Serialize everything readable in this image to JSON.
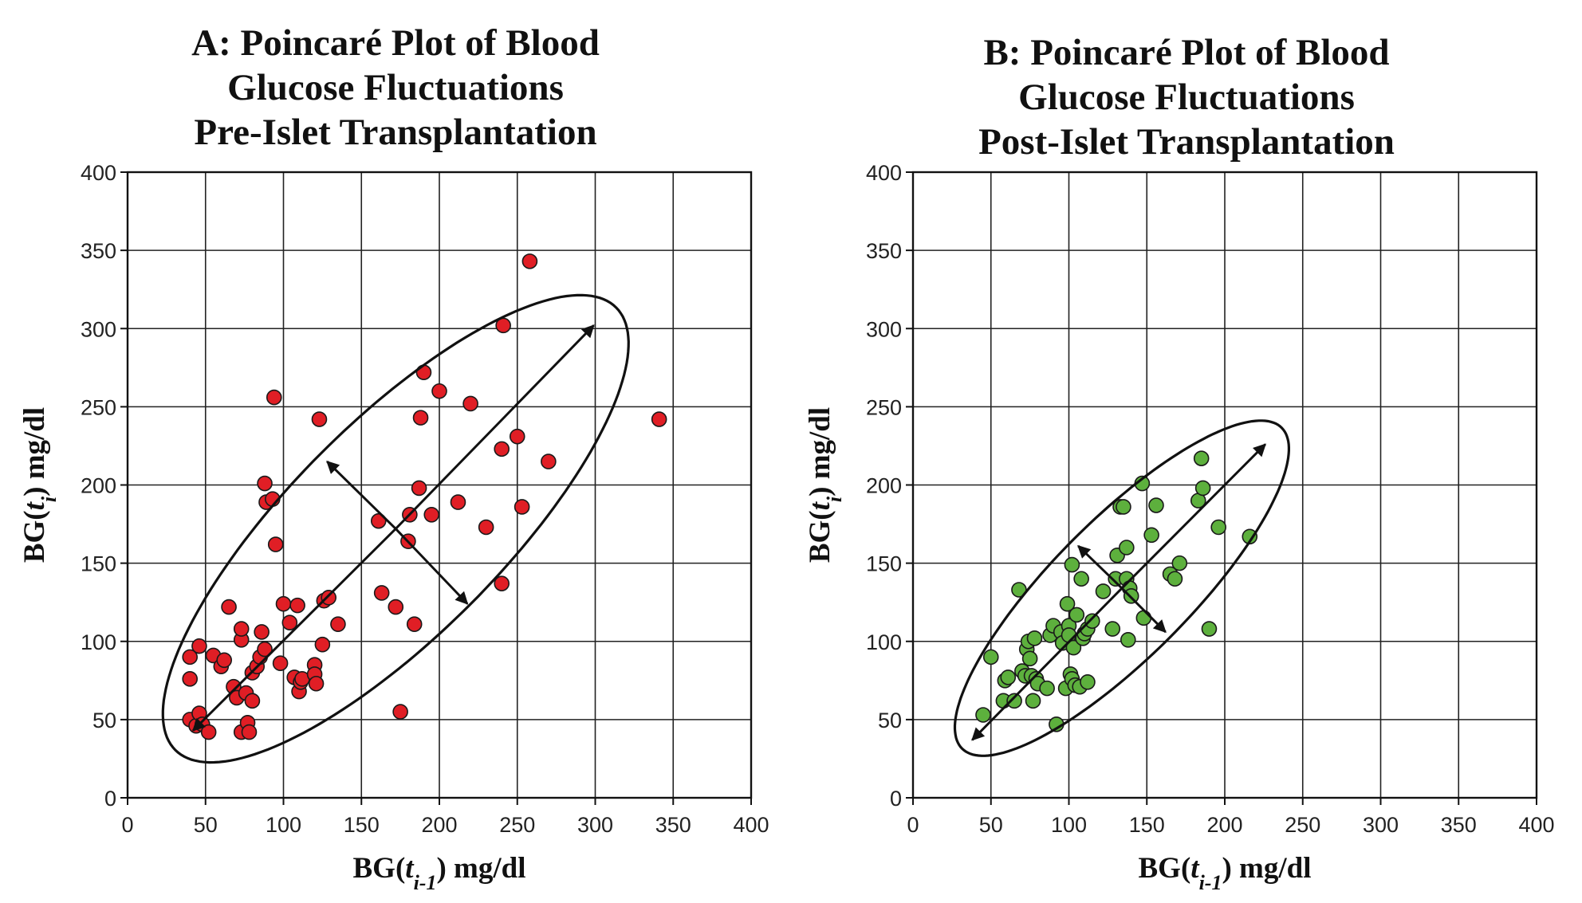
{
  "chart_data": [
    {
      "type": "scatter",
      "title_lines": [
        "A: Poincaré Plot of Blood",
        "Glucose Fluctuations",
        "Pre-Islet Transplantation"
      ],
      "xlabel": {
        "base": "BG(",
        "var": "t",
        "sub": "i-1",
        "close": ")",
        "unit": " mg/dl"
      },
      "ylabel": {
        "base": "BG(",
        "var": "t",
        "sub": "i",
        "close": ")",
        "unit": " mg/dl"
      },
      "xlim": [
        0,
        400
      ],
      "ylim": [
        0,
        400
      ],
      "xticks": [
        0,
        50,
        100,
        150,
        200,
        250,
        300,
        350,
        400
      ],
      "yticks": [
        0,
        50,
        100,
        150,
        200,
        250,
        300,
        350,
        400
      ],
      "tick_labels": [
        "0",
        "50",
        "100",
        "150",
        "200",
        "250",
        "300",
        "350",
        "400"
      ],
      "grid": true,
      "point_color": "#e01e25",
      "points": [
        [
          40,
          50
        ],
        [
          44,
          46
        ],
        [
          46,
          54
        ],
        [
          48,
          47
        ],
        [
          52,
          42
        ],
        [
          40,
          76
        ],
        [
          40,
          90
        ],
        [
          46,
          97
        ],
        [
          55,
          91
        ],
        [
          60,
          84
        ],
        [
          62,
          88
        ],
        [
          65,
          122
        ],
        [
          68,
          71
        ],
        [
          70,
          64
        ],
        [
          73,
          42
        ],
        [
          73,
          101
        ],
        [
          73,
          108
        ],
        [
          76,
          67
        ],
        [
          77,
          48
        ],
        [
          78,
          42
        ],
        [
          80,
          62
        ],
        [
          80,
          80
        ],
        [
          83,
          84
        ],
        [
          85,
          90
        ],
        [
          86,
          106
        ],
        [
          88,
          95
        ],
        [
          88,
          201
        ],
        [
          89,
          189
        ],
        [
          93,
          191
        ],
        [
          94,
          256
        ],
        [
          95,
          162
        ],
        [
          98,
          86
        ],
        [
          100,
          124
        ],
        [
          104,
          112
        ],
        [
          107,
          77
        ],
        [
          109,
          123
        ],
        [
          110,
          68
        ],
        [
          111,
          74
        ],
        [
          112,
          76
        ],
        [
          120,
          85
        ],
        [
          120,
          79
        ],
        [
          121,
          73
        ],
        [
          123,
          242
        ],
        [
          125,
          98
        ],
        [
          126,
          126
        ],
        [
          129,
          128
        ],
        [
          135,
          111
        ],
        [
          161,
          177
        ],
        [
          163,
          131
        ],
        [
          172,
          122
        ],
        [
          175,
          55
        ],
        [
          180,
          164
        ],
        [
          181,
          181
        ],
        [
          184,
          111
        ],
        [
          187,
          198
        ],
        [
          188,
          243
        ],
        [
          190,
          272
        ],
        [
          195,
          181
        ],
        [
          200,
          260
        ],
        [
          212,
          189
        ],
        [
          220,
          252
        ],
        [
          230,
          173
        ],
        [
          240,
          137
        ],
        [
          240,
          223
        ],
        [
          241,
          302
        ],
        [
          250,
          231
        ],
        [
          253,
          186
        ],
        [
          258,
          343
        ],
        [
          270,
          215
        ],
        [
          341,
          242
        ]
      ],
      "ellipse": {
        "center": [
          172,
          172
        ],
        "semi_major_axis": 200,
        "semi_minor_axis": 68,
        "angle_deg": 45
      },
      "arrows": [
        {
          "from": [
            172,
            172
          ],
          "to": [
            299,
            302
          ]
        },
        {
          "from": [
            172,
            172
          ],
          "to": [
            42,
            43
          ]
        },
        {
          "from": [
            172,
            172
          ],
          "to": [
            128,
            215
          ]
        },
        {
          "from": [
            172,
            172
          ],
          "to": [
            218,
            124
          ]
        }
      ]
    },
    {
      "type": "scatter",
      "title_lines": [
        "B: Poincaré Plot of Blood",
        "Glucose Fluctuations",
        "Post-Islet Transplantation"
      ],
      "xlabel": {
        "base": "BG(",
        "var": "t",
        "sub": "i-1",
        "close": ")",
        "unit": " mg/dl"
      },
      "ylabel": {
        "base": "BG(",
        "var": "t",
        "sub": "i",
        "close": ")",
        "unit": " mg/dl"
      },
      "xlim": [
        0,
        400
      ],
      "ylim": [
        0,
        400
      ],
      "xticks": [
        0,
        50,
        100,
        150,
        200,
        250,
        300,
        350,
        400
      ],
      "yticks": [
        0,
        50,
        100,
        150,
        200,
        250,
        300,
        350,
        400
      ],
      "tick_labels": [
        "0",
        "50",
        "100",
        "150",
        "200",
        "250",
        "300",
        "350",
        "400"
      ],
      "grid": true,
      "point_color": "#5db03d",
      "points": [
        [
          45,
          53
        ],
        [
          50,
          90
        ],
        [
          58,
          62
        ],
        [
          59,
          75
        ],
        [
          61,
          77
        ],
        [
          65,
          62
        ],
        [
          68,
          133
        ],
        [
          70,
          81
        ],
        [
          72,
          78
        ],
        [
          73,
          95
        ],
        [
          74,
          100
        ],
        [
          75,
          89
        ],
        [
          76,
          78
        ],
        [
          77,
          62
        ],
        [
          78,
          102
        ],
        [
          79,
          76
        ],
        [
          80,
          73
        ],
        [
          86,
          70
        ],
        [
          88,
          104
        ],
        [
          90,
          110
        ],
        [
          92,
          47
        ],
        [
          95,
          106
        ],
        [
          96,
          99
        ],
        [
          98,
          70
        ],
        [
          99,
          124
        ],
        [
          100,
          110
        ],
        [
          100,
          104
        ],
        [
          101,
          79
        ],
        [
          102,
          76
        ],
        [
          102,
          149
        ],
        [
          103,
          96
        ],
        [
          104,
          72
        ],
        [
          105,
          117
        ],
        [
          107,
          71
        ],
        [
          108,
          140
        ],
        [
          109,
          102
        ],
        [
          110,
          105
        ],
        [
          112,
          74
        ],
        [
          112,
          108
        ],
        [
          115,
          113
        ],
        [
          122,
          132
        ],
        [
          128,
          108
        ],
        [
          130,
          140
        ],
        [
          131,
          155
        ],
        [
          133,
          186
        ],
        [
          135,
          186
        ],
        [
          137,
          160
        ],
        [
          137,
          140
        ],
        [
          138,
          101
        ],
        [
          139,
          134
        ],
        [
          140,
          129
        ],
        [
          147,
          201
        ],
        [
          148,
          115
        ],
        [
          153,
          168
        ],
        [
          156,
          187
        ],
        [
          165,
          143
        ],
        [
          168,
          140
        ],
        [
          171,
          150
        ],
        [
          183,
          190
        ],
        [
          185,
          217
        ],
        [
          186,
          198
        ],
        [
          190,
          108
        ],
        [
          196,
          173
        ],
        [
          216,
          167
        ]
      ],
      "ellipse": {
        "center": [
          134,
          134
        ],
        "semi_major_axis": 145,
        "semi_minor_axis": 44,
        "angle_deg": 45
      },
      "arrows": [
        {
          "from": [
            134,
            134
          ],
          "to": [
            226,
            226
          ]
        },
        {
          "from": [
            134,
            134
          ],
          "to": [
            38,
            37
          ]
        },
        {
          "from": [
            134,
            134
          ],
          "to": [
            106,
            161
          ]
        },
        {
          "from": [
            134,
            134
          ],
          "to": [
            162,
            106
          ]
        }
      ]
    }
  ]
}
